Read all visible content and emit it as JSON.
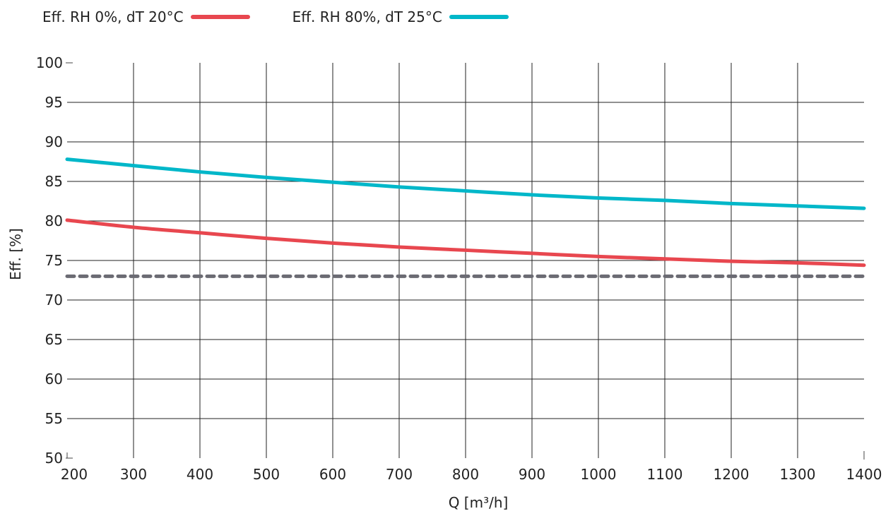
{
  "chart_data": {
    "type": "line",
    "xlabel": "Q [m³/h]",
    "ylabel": "Eff. [%]",
    "xlim": [
      200,
      1400
    ],
    "ylim": [
      50,
      100
    ],
    "x_ticks": [
      200,
      300,
      400,
      500,
      600,
      700,
      800,
      900,
      1000,
      1100,
      1200,
      1300,
      1400
    ],
    "y_ticks": [
      50,
      55,
      60,
      65,
      70,
      75,
      80,
      85,
      90,
      95,
      100
    ],
    "grid": true,
    "legend_position": "top-left",
    "series": [
      {
        "name": "Eff. RH 0%, dT 20°C",
        "color": "#e8474f",
        "x": [
          200,
          300,
          400,
          500,
          600,
          700,
          800,
          900,
          1000,
          1100,
          1200,
          1300,
          1400
        ],
        "y": [
          80.1,
          79.2,
          78.5,
          77.8,
          77.2,
          76.7,
          76.3,
          75.9,
          75.5,
          75.2,
          74.9,
          74.7,
          74.4
        ]
      },
      {
        "name": "Eff. RH 80%, dT 25°C",
        "color": "#00b7c9",
        "x": [
          200,
          300,
          400,
          500,
          600,
          700,
          800,
          900,
          1000,
          1100,
          1200,
          1300,
          1400
        ],
        "y": [
          87.8,
          87.0,
          86.2,
          85.5,
          84.9,
          84.3,
          83.8,
          83.3,
          82.9,
          82.6,
          82.2,
          81.9,
          81.6
        ]
      }
    ],
    "reference_lines": [
      {
        "y": 73,
        "style": "dashed",
        "color": "#6b6b73"
      }
    ]
  }
}
